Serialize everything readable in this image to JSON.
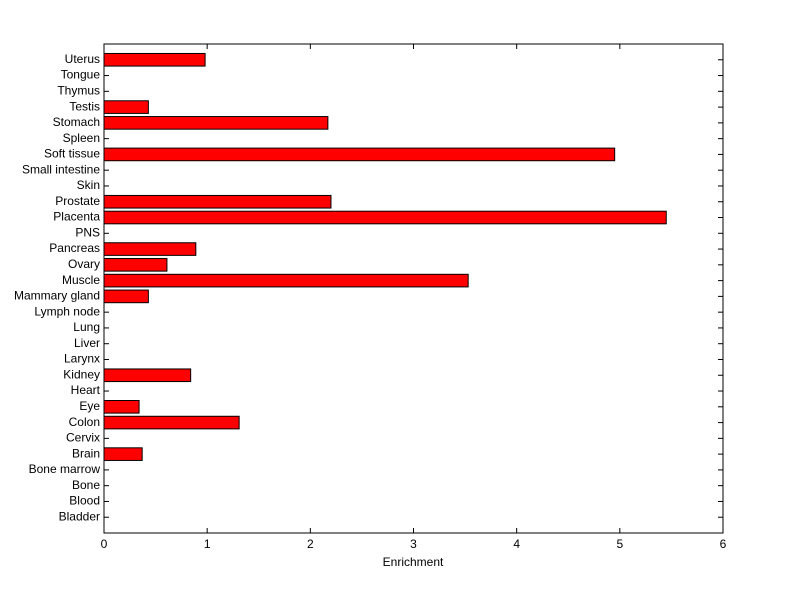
{
  "chart_data": {
    "type": "barh",
    "xlabel": "Enrichment",
    "categories": [
      "Bladder",
      "Blood",
      "Bone",
      "Bone marrow",
      "Brain",
      "Cervix",
      "Colon",
      "Eye",
      "Heart",
      "Kidney",
      "Larynx",
      "Liver",
      "Lung",
      "Lymph node",
      "Mammary gland",
      "Muscle",
      "Ovary",
      "Pancreas",
      "PNS",
      "Placenta",
      "Prostate",
      "Skin",
      "Small intestine",
      "Soft tissue",
      "Spleen",
      "Stomach",
      "Testis",
      "Thymus",
      "Tongue",
      "Uterus"
    ],
    "values": [
      0,
      0,
      0,
      0,
      0.37,
      0,
      1.31,
      0.34,
      0,
      0.84,
      0,
      0,
      0,
      0,
      0.43,
      3.53,
      0.61,
      0.89,
      0,
      5.45,
      2.2,
      0,
      0,
      4.95,
      0,
      2.17,
      0.43,
      0,
      0,
      0.98
    ],
    "color": "#ff0000",
    "xlim": [
      0,
      6
    ],
    "xticks": [
      0,
      1,
      2,
      3,
      4,
      5,
      6
    ]
  }
}
